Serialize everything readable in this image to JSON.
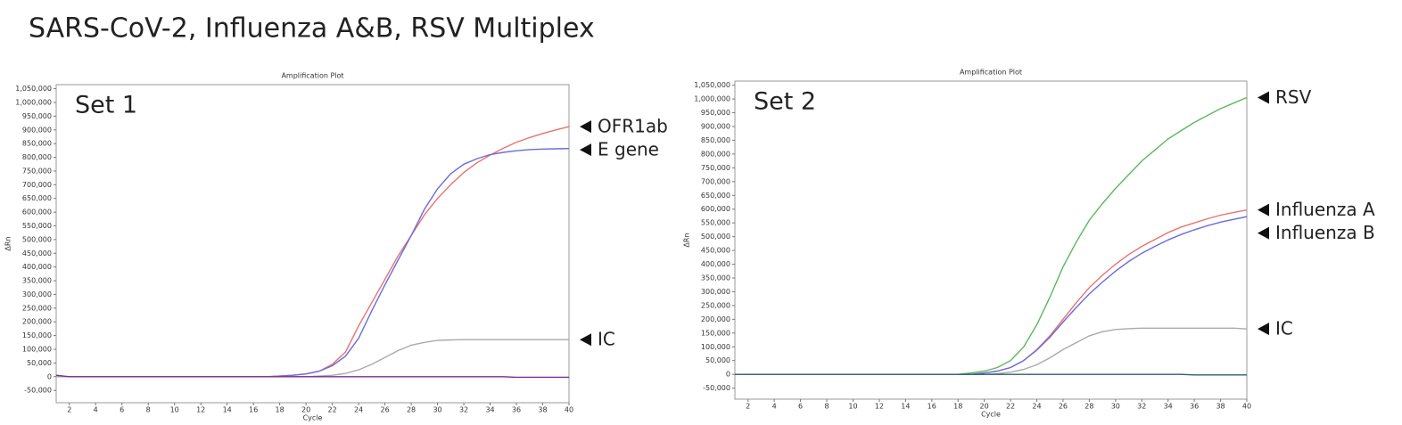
{
  "title": "SARS-CoV-2, Influenza A&B, RSV Multiplex",
  "chart_data": [
    {
      "type": "line",
      "title": "Amplification Plot",
      "panel_label": "Set 1",
      "xlabel": "Cycle",
      "ylabel": "ΔRn",
      "x": [
        1,
        2,
        3,
        4,
        5,
        6,
        7,
        8,
        9,
        10,
        11,
        12,
        13,
        14,
        15,
        16,
        17,
        18,
        19,
        20,
        21,
        22,
        23,
        24,
        25,
        26,
        27,
        28,
        29,
        30,
        31,
        32,
        33,
        34,
        35,
        36,
        37,
        38,
        39,
        40
      ],
      "xlim": [
        1,
        40
      ],
      "xticks": [
        2,
        4,
        6,
        8,
        10,
        12,
        14,
        16,
        18,
        20,
        22,
        24,
        26,
        28,
        30,
        32,
        34,
        36,
        38,
        40
      ],
      "ylim": [
        -95000,
        1065000
      ],
      "yticks": [
        {
          "value": -50000,
          "label": "-50,000"
        },
        0,
        {
          "value": 50000,
          "label": "50,000"
        },
        {
          "value": 100000,
          "label": "100,000"
        },
        {
          "value": 150000,
          "label": "150,000"
        },
        {
          "value": 200000,
          "label": "200,000"
        },
        {
          "value": 250000,
          "label": "250,000"
        },
        {
          "value": 300000,
          "label": "300,000"
        },
        {
          "value": 350000,
          "label": "350,000"
        },
        {
          "value": 400000,
          "label": "400,000"
        },
        {
          "value": 450000,
          "label": "450,000"
        },
        {
          "value": 500000,
          "label": "500,000"
        },
        {
          "value": 550000,
          "label": "550,000"
        },
        {
          "value": 600000,
          "label": "600,000"
        },
        {
          "value": 650000,
          "label": "650,000"
        },
        {
          "value": 700000,
          "label": "700,000"
        },
        {
          "value": 750000,
          "label": "750,000"
        },
        {
          "value": 800000,
          "label": "800,000"
        },
        {
          "value": 850000,
          "label": "850,000"
        },
        {
          "value": 900000,
          "label": "900,000"
        },
        {
          "value": 950000,
          "label": "950,000"
        },
        {
          "value": 1000000,
          "label": "1,000,000"
        },
        {
          "value": 1050000,
          "label": "1,050,000"
        }
      ],
      "series": [
        {
          "name": "OFR1ab",
          "color": "#e8736e",
          "values": [
            0,
            0,
            0,
            0,
            0,
            0,
            0,
            0,
            0,
            0,
            0,
            0,
            0,
            0,
            0,
            0,
            0,
            2000,
            5000,
            10000,
            20000,
            45000,
            90000,
            185000,
            270000,
            355000,
            440000,
            515000,
            590000,
            650000,
            700000,
            745000,
            780000,
            808000,
            833000,
            855000,
            872000,
            887000,
            900000,
            912000
          ]
        },
        {
          "name": "E gene",
          "color": "#6b6be0",
          "values": [
            0,
            0,
            0,
            0,
            0,
            0,
            0,
            0,
            0,
            0,
            0,
            0,
            0,
            0,
            0,
            0,
            0,
            2000,
            5000,
            10000,
            20000,
            40000,
            75000,
            140000,
            240000,
            335000,
            425000,
            515000,
            610000,
            685000,
            740000,
            775000,
            795000,
            810000,
            818000,
            824000,
            828000,
            830000,
            831000,
            832000
          ]
        },
        {
          "name": "IC",
          "color": "#aaaaaa",
          "values": [
            0,
            0,
            0,
            0,
            0,
            0,
            0,
            0,
            0,
            0,
            0,
            0,
            0,
            0,
            0,
            0,
            0,
            0,
            0,
            0,
            2000,
            5000,
            12000,
            25000,
            45000,
            70000,
            95000,
            115000,
            125000,
            132000,
            134000,
            135000,
            135000,
            135000,
            135000,
            135000,
            135000,
            135000,
            135000,
            135000
          ]
        },
        {
          "color": "#7b2d8e",
          "values": [
            5000,
            0,
            0,
            0,
            0,
            0,
            0,
            0,
            0,
            0,
            0,
            0,
            0,
            0,
            0,
            0,
            0,
            0,
            0,
            0,
            0,
            0,
            0,
            0,
            0,
            0,
            0,
            0,
            0,
            0,
            0,
            0,
            0,
            0,
            0,
            -2000,
            -2000,
            -2000,
            -2000,
            -2000
          ]
        }
      ]
    },
    {
      "type": "line",
      "title": "Amplification Plot",
      "panel_label": "Set 2",
      "xlabel": "Cycle",
      "ylabel": "ΔRn",
      "x": [
        1,
        2,
        3,
        4,
        5,
        6,
        7,
        8,
        9,
        10,
        11,
        12,
        13,
        14,
        15,
        16,
        17,
        18,
        19,
        20,
        21,
        22,
        23,
        24,
        25,
        26,
        27,
        28,
        29,
        30,
        31,
        32,
        33,
        34,
        35,
        36,
        37,
        38,
        39,
        40
      ],
      "xlim": [
        1,
        40
      ],
      "xticks": [
        2,
        4,
        6,
        8,
        10,
        12,
        14,
        16,
        18,
        20,
        22,
        24,
        26,
        28,
        30,
        32,
        34,
        36,
        38,
        40
      ],
      "ylim": [
        -90000,
        1065000
      ],
      "yticks": [
        {
          "value": -50000,
          "label": "-50,000"
        },
        0,
        {
          "value": 50000,
          "label": "50,000"
        },
        {
          "value": 100000,
          "label": "100,000"
        },
        {
          "value": 150000,
          "label": "150,000"
        },
        {
          "value": 200000,
          "label": "200,000"
        },
        {
          "value": 250000,
          "label": "250,000"
        },
        {
          "value": 300000,
          "label": "300,000"
        },
        {
          "value": 350000,
          "label": "350,000"
        },
        {
          "value": 400000,
          "label": "400,000"
        },
        {
          "value": 450000,
          "label": "450,000"
        },
        {
          "value": 500000,
          "label": "500,000"
        },
        {
          "value": 550000,
          "label": "550,000"
        },
        {
          "value": 600000,
          "label": "600,000"
        },
        {
          "value": 650000,
          "label": "650,000"
        },
        {
          "value": 700000,
          "label": "700,000"
        },
        {
          "value": 750000,
          "label": "750,000"
        },
        {
          "value": 800000,
          "label": "800,000"
        },
        {
          "value": 850000,
          "label": "850,000"
        },
        {
          "value": 900000,
          "label": "900,000"
        },
        {
          "value": 950000,
          "label": "950,000"
        },
        {
          "value": 1000000,
          "label": "1,000,000"
        },
        {
          "value": 1050000,
          "label": "1,050,000"
        }
      ],
      "series": [
        {
          "name": "RSV",
          "color": "#5cb85c",
          "values": [
            0,
            0,
            0,
            0,
            0,
            0,
            0,
            0,
            0,
            0,
            0,
            0,
            0,
            0,
            0,
            0,
            0,
            0,
            5000,
            12000,
            25000,
            50000,
            100000,
            180000,
            280000,
            390000,
            480000,
            560000,
            620000,
            675000,
            725000,
            775000,
            815000,
            855000,
            885000,
            915000,
            940000,
            965000,
            985000,
            1005000
          ]
        },
        {
          "name": "Influenza A",
          "color": "#e8736e",
          "values": [
            0,
            0,
            0,
            0,
            0,
            0,
            0,
            0,
            0,
            0,
            0,
            0,
            0,
            0,
            0,
            0,
            0,
            0,
            0,
            5000,
            12000,
            25000,
            50000,
            90000,
            140000,
            200000,
            260000,
            315000,
            360000,
            400000,
            435000,
            465000,
            490000,
            515000,
            535000,
            550000,
            565000,
            578000,
            588000,
            597000
          ]
        },
        {
          "name": "Influenza B",
          "color": "#6b6be0",
          "values": [
            0,
            0,
            0,
            0,
            0,
            0,
            0,
            0,
            0,
            0,
            0,
            0,
            0,
            0,
            0,
            0,
            0,
            0,
            0,
            5000,
            12000,
            25000,
            50000,
            88000,
            135000,
            190000,
            243000,
            292000,
            335000,
            375000,
            410000,
            440000,
            465000,
            488000,
            508000,
            525000,
            540000,
            553000,
            563000,
            573000
          ]
        },
        {
          "name": "IC",
          "color": "#aaaaaa",
          "values": [
            0,
            0,
            0,
            0,
            0,
            0,
            0,
            0,
            0,
            0,
            0,
            0,
            0,
            0,
            0,
            0,
            0,
            0,
            0,
            0,
            3000,
            8000,
            18000,
            35000,
            60000,
            90000,
            115000,
            140000,
            155000,
            163000,
            166000,
            168000,
            168000,
            168000,
            168000,
            168000,
            168000,
            168000,
            168000,
            165000
          ]
        },
        {
          "color": "#2f5f6f",
          "values": [
            0,
            0,
            0,
            0,
            0,
            0,
            0,
            0,
            0,
            0,
            0,
            0,
            0,
            0,
            0,
            0,
            0,
            0,
            0,
            0,
            0,
            0,
            0,
            0,
            0,
            0,
            0,
            0,
            0,
            0,
            0,
            0,
            0,
            0,
            0,
            -2000,
            -2000,
            -2000,
            -2000,
            -2000
          ]
        }
      ]
    }
  ]
}
